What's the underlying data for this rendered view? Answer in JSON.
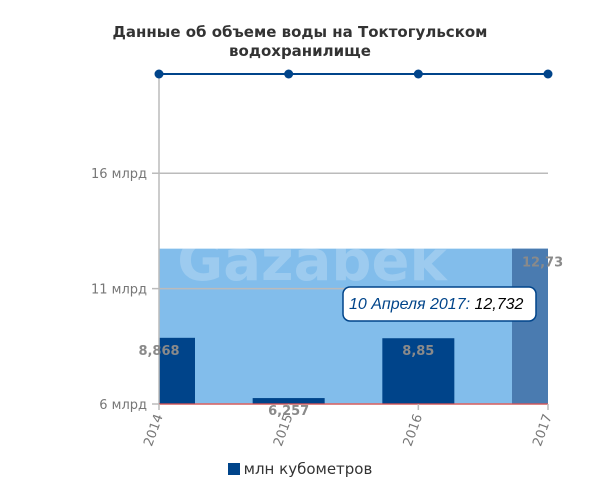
{
  "chart_data": {
    "type": "bar",
    "title_lines": [
      "Данные об объеме воды на Токтогульском",
      "водохранилище"
    ],
    "categories": [
      "2014",
      "2015",
      "2016",
      "2017"
    ],
    "series": [
      {
        "name": "млн кубометров",
        "values": [
          8868,
          6257,
          8850,
          12732
        ]
      }
    ],
    "data_labels": [
      "8,868",
      "6,257",
      "8,85",
      "12,73"
    ],
    "y_ticks": [
      {
        "value": 6000,
        "label": "6 млрд"
      },
      {
        "value": 11000,
        "label": "11 млрд"
      },
      {
        "value": 16000,
        "label": "16 млрд"
      }
    ],
    "y_range": [
      6000,
      20300
    ],
    "reference_line_value": 20300,
    "highlighted_category": "2017",
    "tooltip": {
      "date": "10 Апреля 2017:",
      "value": "12,732"
    },
    "watermark": "Gazabek",
    "grid": true,
    "legend_position": "bottom-center",
    "colors": {
      "bar": "#00448a",
      "bar_highlight": "#4a7bb0",
      "hover_band": "#82bdeb",
      "line": "#00448a",
      "axis": "#bbbbbb",
      "baseline": "#e05050",
      "tooltip_border": "#00448a",
      "tooltip_date": "#00448a",
      "tooltip_value": "#000000"
    }
  }
}
